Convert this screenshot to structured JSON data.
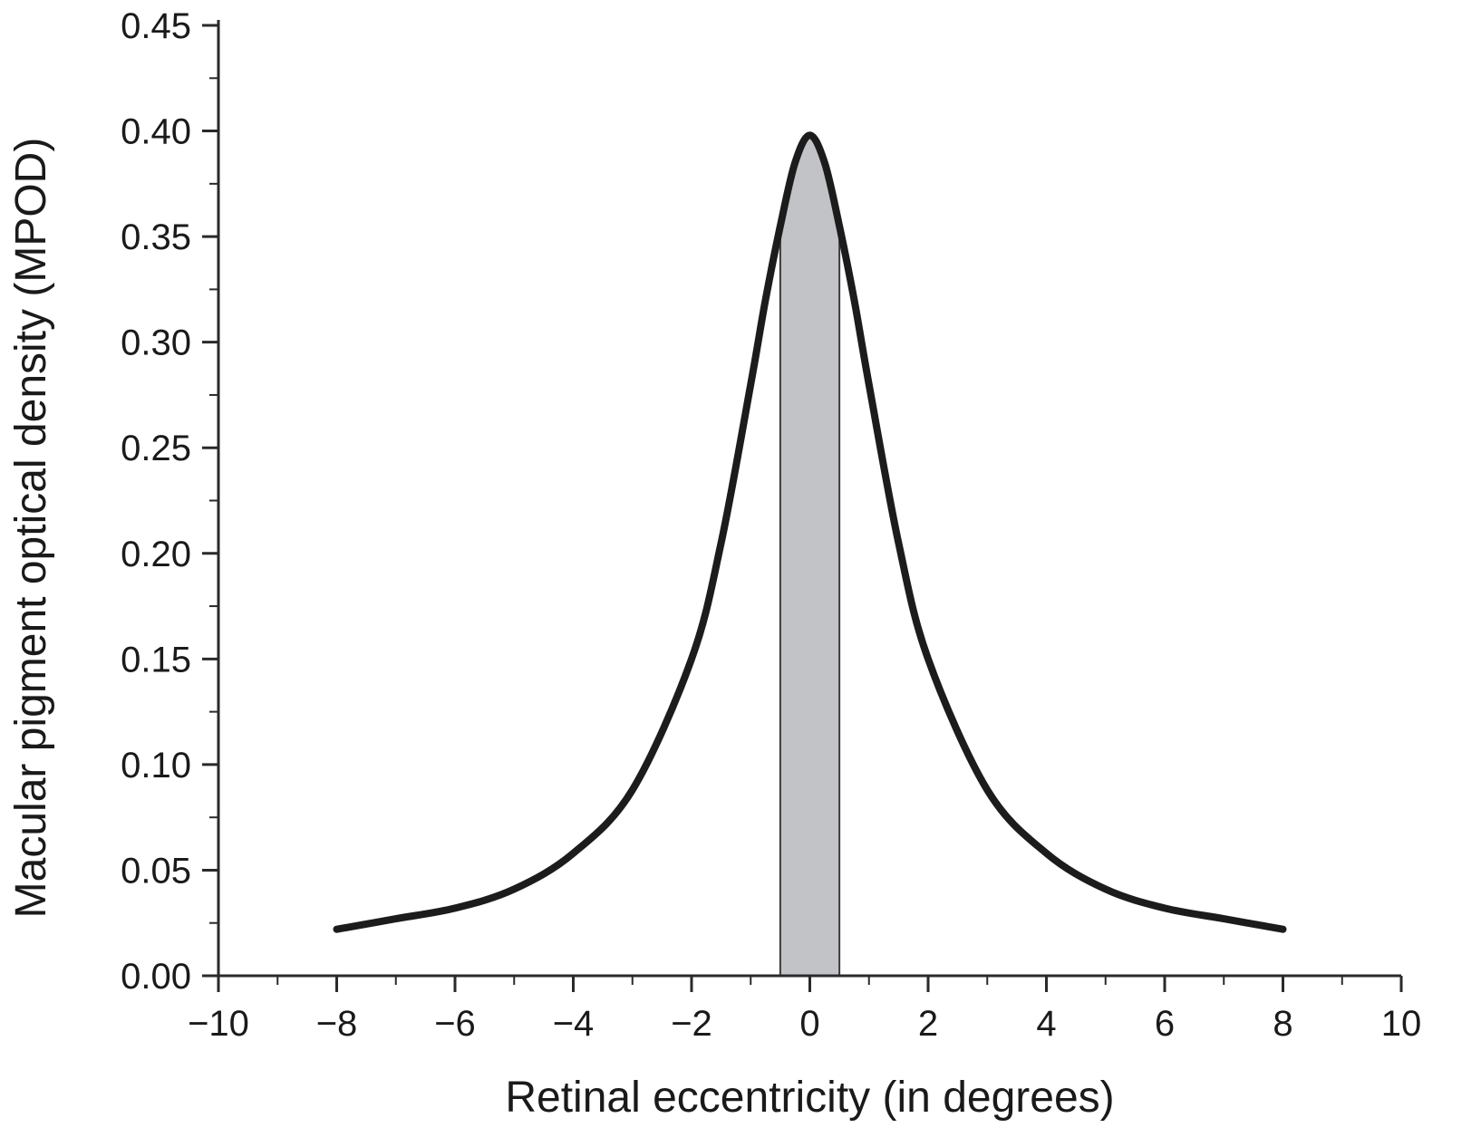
{
  "chart_data": {
    "type": "line",
    "title": "",
    "xlabel": "Retinal eccentricity (in degrees)",
    "ylabel": "Macular pigment optical density (MPOD)",
    "xlim": [
      -10,
      10
    ],
    "ylim": [
      0,
      0.45
    ],
    "x_ticks": [
      -10,
      -8,
      -6,
      -4,
      -2,
      0,
      2,
      4,
      6,
      8,
      10
    ],
    "x_tick_labels": [
      "−10",
      "−8",
      "−6",
      "−4",
      "−2",
      "0",
      "2",
      "4",
      "6",
      "8",
      "10"
    ],
    "y_ticks": [
      0,
      0.05,
      0.1,
      0.15,
      0.2,
      0.25,
      0.3,
      0.35,
      0.4,
      0.45
    ],
    "y_tick_labels": [
      "0.00",
      "0.05",
      "0.10",
      "0.15",
      "0.20",
      "0.25",
      "0.30",
      "0.35",
      "0.40",
      "0.45"
    ],
    "grid": false,
    "series": [
      {
        "x": [
          -8,
          -7,
          -6,
          -5,
          -4,
          -3,
          -2,
          -1.5,
          -1,
          -0.75,
          -0.5,
          -0.25,
          0,
          0.25,
          0.5,
          0.75,
          1,
          1.5,
          2,
          3,
          4,
          5,
          6,
          7,
          8
        ],
        "values": [
          0.022,
          0.027,
          0.032,
          0.041,
          0.058,
          0.088,
          0.15,
          0.205,
          0.28,
          0.32,
          0.355,
          0.385,
          0.398,
          0.385,
          0.355,
          0.32,
          0.28,
          0.205,
          0.15,
          0.088,
          0.058,
          0.041,
          0.032,
          0.027,
          0.022
        ]
      }
    ],
    "shaded_region": {
      "x_start": -0.5,
      "x_end": 0.5
    },
    "colors": {
      "line": "#1c1c1c",
      "shade": "#c2c3c6",
      "axis": "#2a2a2a"
    }
  }
}
